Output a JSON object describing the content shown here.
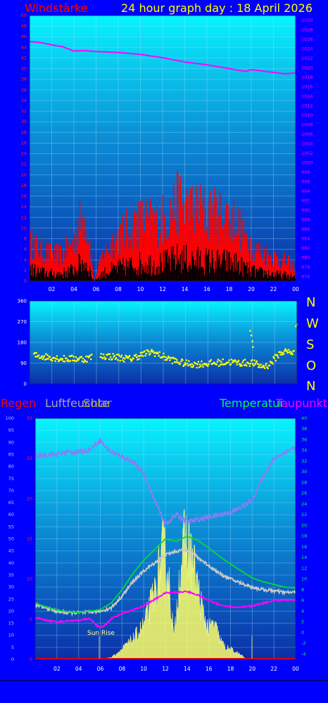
{
  "header": {
    "wind_label": "Windstärke",
    "title": "24 hour graph day : 18 April 2026"
  },
  "compass": [
    "N",
    "W",
    "S",
    "O",
    "N"
  ],
  "legend": {
    "rain": "Regen",
    "humidity": "Luftfeuchte",
    "solar": "Solar",
    "temperature": "Temperatur",
    "dewpoint": "Taupunkt"
  },
  "annotation": {
    "sunrise": "Sun Rise"
  },
  "colors": {
    "background": "#0000ff",
    "wind": "#ff0000",
    "pressure": "#ff00ff",
    "direction": "#ffff00",
    "humidity": "#8a7cf5",
    "solar": "#ffff66",
    "temperature": "#00dd33",
    "dewpoint": "#ff00ff",
    "rain": "#ff0000"
  },
  "chart_data": [
    {
      "type": "bar",
      "name": "wind",
      "x_ticks": [
        "02",
        "04",
        "06",
        "08",
        "10",
        "12",
        "14",
        "16",
        "18",
        "20",
        "22",
        "00"
      ],
      "y_left_ticks": [
        0,
        2,
        4,
        6,
        8,
        10,
        12,
        14,
        16,
        18,
        20,
        22,
        24,
        26,
        28,
        30,
        32,
        34,
        36,
        38,
        40,
        42,
        44,
        46,
        48,
        50
      ],
      "y_right_ticks": [
        976,
        978,
        980,
        982,
        984,
        986,
        988,
        990,
        992,
        994,
        996,
        998,
        1000,
        1002,
        1004,
        1006,
        1008,
        1010,
        1012,
        1014,
        1016,
        1018,
        1020,
        1022,
        1024,
        1026,
        1028,
        1030
      ],
      "ylim": [
        0,
        50
      ],
      "y2lim": [
        975,
        1031
      ],
      "gust_profile": [
        [
          0,
          9
        ],
        [
          1,
          7
        ],
        [
          2,
          6
        ],
        [
          3,
          6
        ],
        [
          4,
          9
        ],
        [
          4.8,
          15
        ],
        [
          5.3,
          12
        ],
        [
          5.8,
          0
        ],
        [
          6.6,
          6
        ],
        [
          7.5,
          9
        ],
        [
          8.5,
          11
        ],
        [
          9.5,
          13
        ],
        [
          10.5,
          14
        ],
        [
          11.5,
          13
        ],
        [
          12.5,
          15
        ],
        [
          13.5,
          18
        ],
        [
          14.5,
          16
        ],
        [
          15.5,
          16
        ],
        [
          16.5,
          15
        ],
        [
          17.5,
          15
        ],
        [
          18.5,
          14
        ],
        [
          19.5,
          10
        ],
        [
          20.5,
          7
        ],
        [
          21.5,
          6
        ],
        [
          22.5,
          5
        ],
        [
          23.5,
          4
        ],
        [
          24,
          3
        ]
      ],
      "pressure": [
        [
          0,
          1025.5
        ],
        [
          1,
          1025.3
        ],
        [
          2,
          1024.8
        ],
        [
          3,
          1024.4
        ],
        [
          4,
          1023.5
        ],
        [
          5,
          1023.6
        ],
        [
          6,
          1023.4
        ],
        [
          8,
          1023.2
        ],
        [
          10,
          1022.8
        ],
        [
          12,
          1022.1
        ],
        [
          14,
          1021.2
        ],
        [
          16,
          1020.6
        ],
        [
          18,
          1019.8
        ],
        [
          19.5,
          1019.2
        ],
        [
          20,
          1019.6
        ],
        [
          21,
          1019.3
        ],
        [
          22,
          1019.0
        ],
        [
          23,
          1018.7
        ],
        [
          24,
          1018.9
        ]
      ]
    },
    {
      "type": "scatter",
      "name": "wind-direction",
      "x_ticks": [
        "02",
        "04",
        "06",
        "08",
        "10",
        "12",
        "14",
        "16",
        "18",
        "20",
        "22",
        "00"
      ],
      "y_ticks": [
        0,
        90,
        180,
        270,
        360
      ],
      "ylim": [
        0,
        360
      ],
      "profile": [
        [
          0,
          125
        ],
        [
          1,
          120
        ],
        [
          2,
          115
        ],
        [
          3,
          108
        ],
        [
          4,
          110
        ],
        [
          5,
          108
        ],
        [
          6,
          122
        ],
        [
          7,
          120
        ],
        [
          8,
          115
        ],
        [
          9,
          108
        ],
        [
          10,
          125
        ],
        [
          11,
          140
        ],
        [
          12,
          118
        ],
        [
          13,
          100
        ],
        [
          14,
          88
        ],
        [
          15,
          85
        ],
        [
          16,
          88
        ],
        [
          17,
          92
        ],
        [
          18,
          95
        ],
        [
          19,
          90
        ],
        [
          20,
          92
        ],
        [
          20.8,
          75
        ],
        [
          21.5,
          82
        ],
        [
          22,
          110
        ],
        [
          22.5,
          135
        ],
        [
          23,
          140
        ],
        [
          24,
          135
        ]
      ],
      "outliers": [
        [
          19.8,
          230
        ],
        [
          19.9,
          210
        ],
        [
          20.0,
          185
        ],
        [
          20.05,
          160
        ],
        [
          23.9,
          250
        ],
        [
          24,
          258
        ]
      ]
    },
    {
      "type": "line",
      "name": "climate",
      "x_ticks": [
        "02",
        "04",
        "06",
        "08",
        "10",
        "12",
        "14",
        "16",
        "18",
        "20",
        "22",
        "00"
      ],
      "humidity_ticks": [
        0,
        5,
        10,
        15,
        20,
        25,
        30,
        35,
        40,
        45,
        50,
        55,
        60,
        65,
        70,
        75,
        80,
        85,
        90,
        95,
        100
      ],
      "rain_ticks": [
        0,
        5,
        10,
        15,
        20,
        25,
        30
      ],
      "temp_ticks": [
        -4,
        -2,
        0,
        2,
        4,
        6,
        8,
        10,
        12,
        14,
        16,
        18,
        20,
        22,
        24,
        26,
        28,
        30,
        32,
        34,
        36,
        38,
        40
      ],
      "humidity_lim": [
        0,
        100
      ],
      "temp_lim": [
        -5,
        40
      ],
      "humidity": [
        [
          0,
          84
        ],
        [
          1,
          85
        ],
        [
          2,
          85
        ],
        [
          3,
          86
        ],
        [
          4,
          86
        ],
        [
          5,
          87
        ],
        [
          6,
          91
        ],
        [
          6.5,
          88
        ],
        [
          7,
          86
        ],
        [
          8,
          84
        ],
        [
          9,
          82
        ],
        [
          10,
          77
        ],
        [
          11,
          66
        ],
        [
          12,
          56
        ],
        [
          13,
          60
        ],
        [
          14,
          57
        ],
        [
          15,
          58
        ],
        [
          16,
          59
        ],
        [
          17,
          60
        ],
        [
          18,
          61
        ],
        [
          19,
          63
        ],
        [
          20,
          66
        ],
        [
          21,
          76
        ],
        [
          22,
          83
        ],
        [
          23,
          86
        ],
        [
          24,
          88
        ]
      ],
      "temperature": [
        [
          0,
          5.5
        ],
        [
          1,
          4.8
        ],
        [
          2,
          4.2
        ],
        [
          3,
          3.9
        ],
        [
          4,
          3.8
        ],
        [
          5,
          4.0
        ],
        [
          6,
          4.3
        ],
        [
          7,
          5.5
        ],
        [
          8,
          8.0
        ],
        [
          9,
          11.0
        ],
        [
          10,
          13.5
        ],
        [
          11,
          15.5
        ],
        [
          12,
          17.5
        ],
        [
          13,
          17.0
        ],
        [
          14,
          18.0
        ],
        [
          15,
          17.2
        ],
        [
          16,
          15.8
        ],
        [
          17,
          14.2
        ],
        [
          18,
          12.8
        ],
        [
          19,
          11.5
        ],
        [
          20,
          10.2
        ],
        [
          21,
          9.5
        ],
        [
          22,
          9.0
        ],
        [
          23,
          8.5
        ],
        [
          24,
          8.3
        ]
      ],
      "temperature2": [
        [
          0,
          5.2
        ],
        [
          1,
          4.6
        ],
        [
          2,
          4.0
        ],
        [
          3,
          3.7
        ],
        [
          4,
          3.7
        ],
        [
          5,
          3.8
        ],
        [
          6,
          4.0
        ],
        [
          7,
          4.6
        ],
        [
          8,
          6.8
        ],
        [
          9,
          9.5
        ],
        [
          10,
          11.5
        ],
        [
          11,
          13.0
        ],
        [
          12,
          14.5
        ],
        [
          13,
          15.2
        ],
        [
          14,
          15.5
        ],
        [
          15,
          14.0
        ],
        [
          16,
          12.5
        ],
        [
          17,
          11.0
        ],
        [
          18,
          10.0
        ],
        [
          19,
          9.2
        ],
        [
          20,
          8.5
        ],
        [
          21,
          8.0
        ],
        [
          22,
          7.8
        ],
        [
          23,
          7.5
        ],
        [
          24,
          7.5
        ]
      ],
      "dewpoint": [
        [
          0,
          2.8
        ],
        [
          1,
          2.3
        ],
        [
          2,
          2.0
        ],
        [
          3,
          2.2
        ],
        [
          4,
          2.3
        ],
        [
          5,
          2.6
        ],
        [
          6,
          0.8
        ],
        [
          6.5,
          1.5
        ],
        [
          7,
          2.6
        ],
        [
          8,
          3.6
        ],
        [
          9,
          4.2
        ],
        [
          10,
          5.0
        ],
        [
          11,
          6.2
        ],
        [
          12,
          7.4
        ],
        [
          13,
          7.5
        ],
        [
          14,
          7.7
        ],
        [
          15,
          7.0
        ],
        [
          16,
          6.0
        ],
        [
          17,
          5.2
        ],
        [
          18,
          4.8
        ],
        [
          19,
          4.7
        ],
        [
          20,
          5.0
        ],
        [
          21,
          5.5
        ],
        [
          22,
          6.0
        ],
        [
          23,
          6.1
        ],
        [
          24,
          6.1
        ]
      ],
      "solar_envelope": [
        [
          0,
          0
        ],
        [
          6,
          0
        ],
        [
          7,
          1
        ],
        [
          8,
          5
        ],
        [
          9,
          10
        ],
        [
          10,
          17
        ],
        [
          11,
          33
        ],
        [
          11.8,
          55
        ],
        [
          12.3,
          40
        ],
        [
          12.8,
          10
        ],
        [
          13.3,
          42
        ],
        [
          13.8,
          60
        ],
        [
          14.5,
          50
        ],
        [
          15,
          35
        ],
        [
          15.5,
          22
        ],
        [
          16,
          15
        ],
        [
          16.5,
          18
        ],
        [
          17,
          10
        ],
        [
          17.5,
          6
        ],
        [
          18,
          5
        ],
        [
          19,
          2
        ],
        [
          19.5,
          0
        ],
        [
          24,
          0
        ]
      ]
    }
  ]
}
